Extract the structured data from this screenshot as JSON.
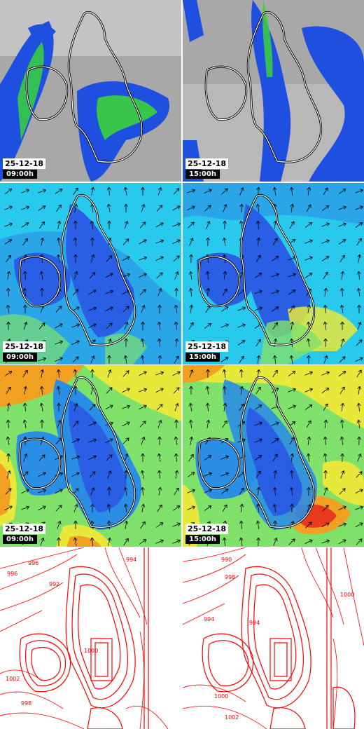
{
  "rows": [
    {
      "kind": "precip",
      "panels": [
        {
          "date": "25-12-18",
          "time": "09:00h"
        },
        {
          "date": "25-12-18",
          "time": "15:00h"
        }
      ]
    },
    {
      "kind": "wind_low",
      "panels": [
        {
          "date": "25-12-18",
          "time": "09:00h"
        },
        {
          "date": "25-12-18",
          "time": "15:00h"
        }
      ]
    },
    {
      "kind": "wind_high",
      "panels": [
        {
          "date": "25-12-18",
          "time": "09:00h"
        },
        {
          "date": "25-12-18",
          "time": "15:00h"
        }
      ]
    },
    {
      "kind": "pressure",
      "panels": [
        {
          "isobar_labels": [
            "996",
            "992",
            "996",
            "994",
            "1000",
            "1002",
            "998"
          ]
        },
        {
          "isobar_labels": [
            "990",
            "998",
            "994",
            "1000",
            "994",
            "1002",
            "1000"
          ]
        }
      ]
    }
  ],
  "colors": {
    "precip_background": "#a9a9a9",
    "precip_blue": "#1f4fe0",
    "precip_green": "#3ad13a",
    "wind_cyan": "#29c9ee",
    "wind_blue": "#2a5fe5",
    "wind_green": "#7fe16a",
    "wind_yellow": "#e8e83a",
    "wind_orange": "#f2a021",
    "wind_red": "#e83a1f",
    "isobar_red": "#ff0000"
  }
}
